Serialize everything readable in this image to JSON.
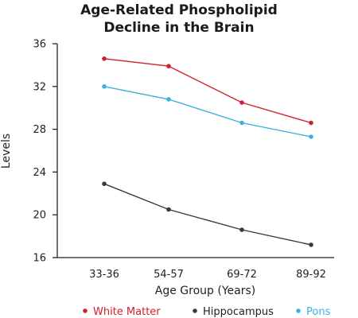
{
  "chart_data": {
    "type": "line",
    "title": [
      "Age-Related Phospholipid",
      "Decline in the Brain"
    ],
    "xlabel": "Age Group (Years)",
    "ylabel": "Levels",
    "categories": [
      "33-36",
      "54-57",
      "69-72",
      "89-92"
    ],
    "ylim": [
      16,
      36
    ],
    "yticks": [
      16,
      20,
      24,
      28,
      32,
      36
    ],
    "grid": false,
    "legend_position": "bottom",
    "series": [
      {
        "name": "White Matter",
        "color": "#d0202e",
        "values": [
          34.6,
          33.9,
          30.5,
          28.6
        ]
      },
      {
        "name": "Hippocampus",
        "color": "#3a3a3a",
        "values": [
          22.9,
          20.5,
          18.6,
          17.2
        ]
      },
      {
        "name": "Pons",
        "color": "#3bb2dd",
        "values": [
          32.0,
          30.8,
          28.6,
          27.3
        ]
      }
    ]
  }
}
